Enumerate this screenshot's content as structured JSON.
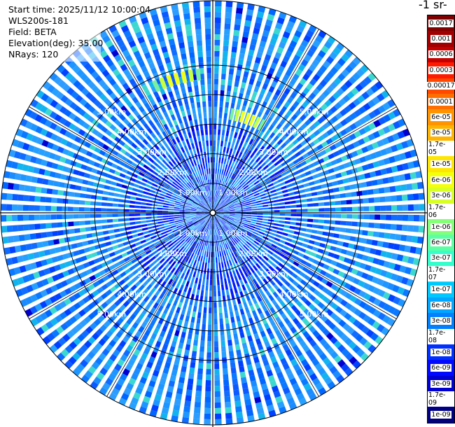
{
  "info": {
    "start_time": "Start time: 2025/11/12 10:00:04",
    "instrument": "WLS200s-181",
    "field": "Field: BETA",
    "elevation": "Elevation(deg): 35.00",
    "nrays": "NRays: 120"
  },
  "colorbar": {
    "title": "-1 sr-",
    "labels": [
      "0.0017",
      "0.001",
      "0.0006",
      "0.0003",
      "0.00017",
      "0.0001",
      "6e-05",
      "3e-05",
      "1.7e-05",
      "1e-05",
      "6e-06",
      "3e-06",
      "1.7e-06",
      "1e-06",
      "6e-07",
      "3e-07",
      "1.7e-07",
      "1e-07",
      "6e-08",
      "3e-08",
      "1.7e-08",
      "1e-08",
      "6e-09",
      "3e-09",
      "1.7e-09",
      "1e-09"
    ],
    "colors": [
      "#7f0000",
      "#a00000",
      "#c40000",
      "#ff1a00",
      "#ff4800",
      "#ff6e00",
      "#ff9400",
      "#ffb400",
      "#ffd400",
      "#ffe600",
      "#f4ff0a",
      "#d8ff26",
      "#b4ff4a",
      "#86ff78",
      "#5cffa2",
      "#34ffcc",
      "#14f2ec",
      "#00c8ff",
      "#00a6ff",
      "#0080ff",
      "#0058ff",
      "#0030ff",
      "#0008ff",
      "#0000d0",
      "#0000a8",
      "#000080"
    ]
  },
  "chart_data": {
    "type": "polar",
    "title": "",
    "range_ring_labels": [
      "1.00km",
      "2.00km",
      "3.00km",
      "4.00km",
      "5.00km"
    ],
    "range_ring_km": [
      1,
      2,
      3,
      4,
      5
    ],
    "max_range_km": 6.3,
    "nrays": 120,
    "field": "BETA",
    "elevation_deg": 35.0,
    "dominant_value": "1e-08",
    "hotspots": [
      {
        "azimuth_deg": 345,
        "range_km_from": 4.5,
        "range_km_to": 4.9,
        "value": "1e-05"
      },
      {
        "azimuth_deg": 20,
        "range_km_from": 3.2,
        "range_km_to": 3.6,
        "value": "1e-05"
      }
    ]
  }
}
